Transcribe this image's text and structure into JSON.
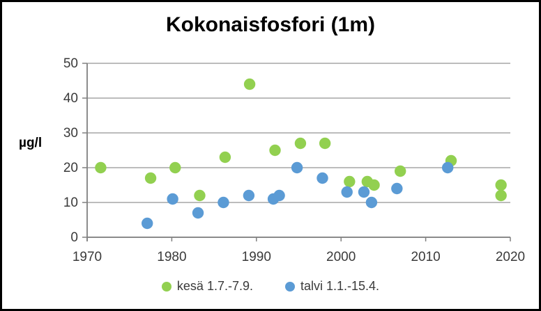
{
  "chart_data": {
    "type": "scatter",
    "title": "Kokonaisfosfori (1m)",
    "xlabel": "",
    "ylabel": "µg/l",
    "xlim": [
      1970,
      2020
    ],
    "ylim": [
      0,
      50
    ],
    "x_ticks": [
      1970,
      1980,
      1990,
      2000,
      2010,
      2020
    ],
    "y_ticks": [
      0,
      10,
      20,
      30,
      40,
      50
    ],
    "grid": "horizontal",
    "legend_position": "bottom",
    "background": "#FFFFFF",
    "border_color": "#000000",
    "grid_color": "#A6A6A6",
    "axis_color": "#808080",
    "text_color": "#3A3A3A",
    "title_color": "#000000",
    "series": [
      {
        "name": "kesä 1.7.-7.9.",
        "color": "#92D050",
        "points": [
          [
            1971.6,
            20
          ],
          [
            1977.5,
            17
          ],
          [
            1980.4,
            20
          ],
          [
            1983.3,
            12
          ],
          [
            1986.3,
            23
          ],
          [
            1989.2,
            44
          ],
          [
            1992.2,
            25
          ],
          [
            1995.2,
            27
          ],
          [
            1998.1,
            27
          ],
          [
            2001.0,
            16
          ],
          [
            2003.1,
            16
          ],
          [
            2003.9,
            15
          ],
          [
            2007.0,
            19
          ],
          [
            2013.0,
            22
          ],
          [
            2018.9,
            15
          ],
          [
            2018.9,
            12
          ]
        ]
      },
      {
        "name": "talvi 1.1.-15.4.",
        "color": "#5B9BD5",
        "points": [
          [
            1977.1,
            4
          ],
          [
            1980.1,
            11
          ],
          [
            1983.1,
            7
          ],
          [
            1986.1,
            10
          ],
          [
            1989.1,
            12
          ],
          [
            1992.0,
            11
          ],
          [
            1992.7,
            12
          ],
          [
            1994.8,
            20
          ],
          [
            1997.8,
            17
          ],
          [
            2000.7,
            13
          ],
          [
            2002.7,
            13
          ],
          [
            2003.6,
            10
          ],
          [
            2006.6,
            14
          ],
          [
            2012.6,
            20
          ]
        ]
      }
    ]
  }
}
